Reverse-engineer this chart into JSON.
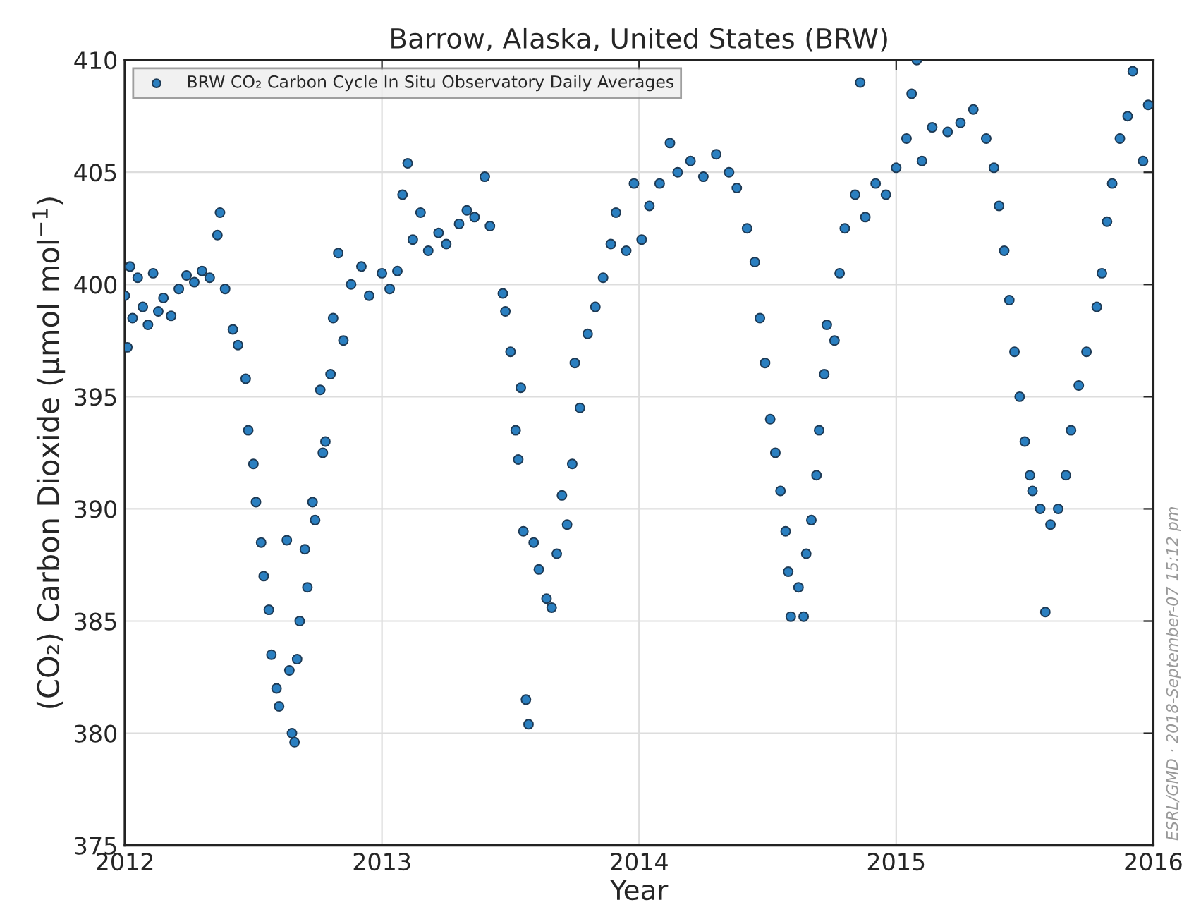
{
  "chart_data": {
    "type": "scatter",
    "title": "Barrow, Alaska, United States (BRW)",
    "xlabel": "Year",
    "ylabel": "(CO₂) Carbon Dioxide (μmol mol$^{−1}$)",
    "xlim": [
      2012,
      2016
    ],
    "xticks": [
      2012,
      2013,
      2014,
      2015,
      2016
    ],
    "ylim": [
      375,
      410
    ],
    "yticks": [
      375,
      380,
      385,
      390,
      395,
      400,
      405,
      410
    ],
    "grid": true,
    "legend": "top left",
    "marker": "circle",
    "annotations": [
      "ESRL/GMD · 2018-September-07 15:12 pm"
    ],
    "series": [
      {
        "name": "BRW CO₂ Carbon Cycle In Situ Observatory Daily Averages",
        "color": "#2a7fc0",
        "x": [
          2012.0,
          2012.01,
          2012.02,
          2012.03,
          2012.05,
          2012.07,
          2012.09,
          2012.11,
          2012.13,
          2012.15,
          2012.18,
          2012.21,
          2012.24,
          2012.27,
          2012.3,
          2012.33,
          2012.36,
          2012.37,
          2012.39,
          2012.42,
          2012.44,
          2012.47,
          2012.48,
          2012.5,
          2012.51,
          2012.53,
          2012.54,
          2012.56,
          2012.57,
          2012.59,
          2012.6,
          2012.63,
          2012.64,
          2012.65,
          2012.66,
          2012.67,
          2012.68,
          2012.7,
          2012.71,
          2012.73,
          2012.74,
          2012.76,
          2012.77,
          2012.78,
          2012.8,
          2012.81,
          2012.83,
          2012.85,
          2012.88,
          2012.92,
          2012.95,
          2013.0,
          2013.03,
          2013.06,
          2013.08,
          2013.1,
          2013.12,
          2013.15,
          2013.18,
          2013.22,
          2013.25,
          2013.3,
          2013.33,
          2013.36,
          2013.4,
          2013.42,
          2013.47,
          2013.48,
          2013.5,
          2013.52,
          2013.53,
          2013.54,
          2013.56,
          2013.57,
          2013.55,
          2013.59,
          2013.61,
          2013.64,
          2013.66,
          2013.68,
          2013.7,
          2013.72,
          2013.74,
          2013.75,
          2013.77,
          2013.8,
          2013.83,
          2013.86,
          2013.89,
          2013.91,
          2013.95,
          2013.98,
          2014.01,
          2014.04,
          2014.08,
          2014.12,
          2014.15,
          2014.2,
          2014.25,
          2014.3,
          2014.35,
          2014.38,
          2014.42,
          2014.45,
          2014.47,
          2014.49,
          2014.51,
          2014.53,
          2014.55,
          2014.57,
          2014.58,
          2014.59,
          2014.62,
          2014.64,
          2014.65,
          2014.67,
          2014.69,
          2014.7,
          2014.72,
          2014.73,
          2014.76,
          2014.78,
          2014.8,
          2014.84,
          2014.86,
          2014.88,
          2014.92,
          2014.96,
          2015.0,
          2015.04,
          2015.06,
          2015.08,
          2015.1,
          2015.14,
          2015.2,
          2015.25,
          2015.3,
          2015.35,
          2015.38,
          2015.4,
          2015.42,
          2015.44,
          2015.46,
          2015.48,
          2015.5,
          2015.52,
          2015.53,
          2015.56,
          2015.58,
          2015.6,
          2015.63,
          2015.66,
          2015.68,
          2015.71,
          2015.74,
          2015.78,
          2015.8,
          2015.82,
          2015.84,
          2015.87,
          2015.9,
          2015.92,
          2015.96,
          2015.98
        ],
        "values": [
          399.5,
          397.2,
          400.8,
          398.5,
          400.3,
          399.0,
          398.2,
          400.5,
          398.8,
          399.4,
          398.6,
          399.8,
          400.4,
          400.1,
          400.6,
          400.3,
          402.2,
          403.2,
          399.8,
          398.0,
          397.3,
          395.8,
          393.5,
          392.0,
          390.3,
          388.5,
          387.0,
          385.5,
          383.5,
          382.0,
          381.2,
          388.6,
          382.8,
          380.0,
          379.6,
          383.3,
          385.0,
          388.2,
          386.5,
          390.3,
          389.5,
          395.3,
          392.5,
          393.0,
          396.0,
          398.5,
          401.4,
          397.5,
          400.0,
          400.8,
          399.5,
          400.5,
          399.8,
          400.6,
          404.0,
          405.4,
          402.0,
          403.2,
          401.5,
          402.3,
          401.8,
          402.7,
          403.3,
          403.0,
          404.8,
          402.6,
          399.6,
          398.8,
          397.0,
          393.5,
          392.2,
          395.4,
          381.5,
          380.4,
          389.0,
          388.5,
          387.3,
          386.0,
          385.6,
          388.0,
          390.6,
          389.3,
          392.0,
          396.5,
          394.5,
          397.8,
          399.0,
          400.3,
          401.8,
          403.2,
          401.5,
          404.5,
          402.0,
          403.5,
          404.5,
          406.3,
          405.0,
          405.5,
          404.8,
          405.8,
          405.0,
          404.3,
          402.5,
          401.0,
          398.5,
          396.5,
          394.0,
          392.5,
          390.8,
          389.0,
          387.2,
          385.2,
          386.5,
          385.2,
          388.0,
          389.5,
          391.5,
          393.5,
          396.0,
          398.2,
          397.5,
          400.5,
          402.5,
          404.0,
          409.0,
          403.0,
          404.5,
          404.0,
          405.2,
          406.5,
          408.5,
          410.0,
          405.5,
          407.0,
          406.8,
          407.2,
          407.8,
          406.5,
          405.2,
          403.5,
          401.5,
          399.3,
          397.0,
          395.0,
          393.0,
          391.5,
          390.8,
          390.0,
          385.4,
          389.3,
          390.0,
          391.5,
          393.5,
          395.5,
          397.0,
          399.0,
          400.5,
          402.8,
          404.5,
          406.5,
          407.5,
          409.5,
          405.5,
          408.0
        ]
      }
    ]
  }
}
